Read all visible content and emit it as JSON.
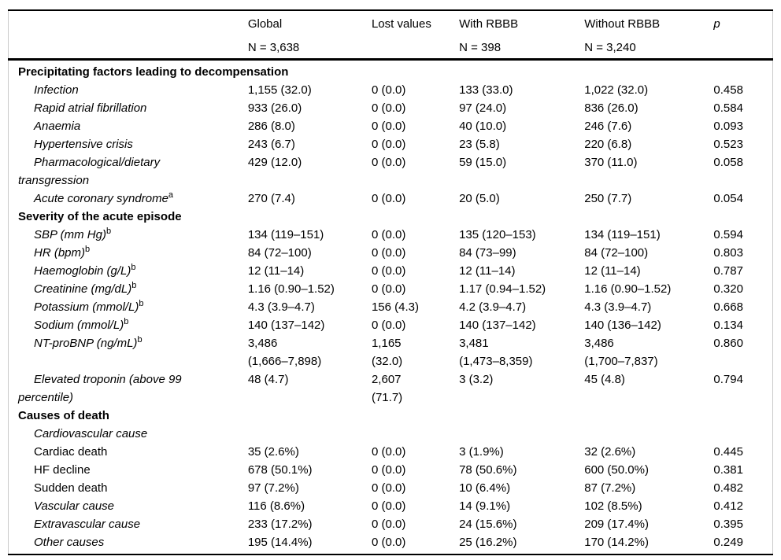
{
  "colors": {
    "text": "#000000",
    "rule": "#000000",
    "side_border": "#c9c9c9"
  },
  "table": {
    "columns": [
      {
        "label": "",
        "sub": ""
      },
      {
        "label": "Global",
        "sub": "N = 3,638"
      },
      {
        "label": "Lost values",
        "sub": ""
      },
      {
        "label": "With RBBB",
        "sub": "N = 398"
      },
      {
        "label": "Without RBBB",
        "sub": "N = 3,240"
      },
      {
        "label": "p",
        "sub": ""
      }
    ],
    "sections": [
      {
        "header": "Precipitating factors leading to decompensation",
        "rows": [
          {
            "label": "Infection",
            "sup": "",
            "values": [
              "1,155 (32.0)",
              "0 (0.0)",
              "133 (33.0)",
              "1,022 (32.0)",
              "0.458"
            ]
          },
          {
            "label": "Rapid atrial fibrillation",
            "sup": "",
            "values": [
              "933 (26.0)",
              "0 (0.0)",
              "97 (24.0)",
              "836 (26.0)",
              "0.584"
            ]
          },
          {
            "label": "Anaemia",
            "sup": "",
            "values": [
              "286 (8.0)",
              "0 (0.0)",
              "40 (10.0)",
              "246 (7.6)",
              "0.093"
            ]
          },
          {
            "label": "Hypertensive crisis",
            "sup": "",
            "values": [
              "243 (6.7)",
              "0 (0.0)",
              "23 (5.8)",
              "220 (6.8)",
              "0.523"
            ]
          },
          {
            "label": "Pharmacological/dietary\ntransgression",
            "sup": "",
            "values": [
              "429 (12.0)",
              "0 (0.0)",
              "59 (15.0)",
              "370 (11.0)",
              "0.058"
            ]
          },
          {
            "label": "Acute coronary syndrome",
            "sup": "a",
            "values": [
              "270 (7.4)",
              "0 (0.0)",
              "20 (5.0)",
              "250 (7.7)",
              "0.054"
            ]
          }
        ]
      },
      {
        "header": "Severity of the acute episode",
        "rows": [
          {
            "label": "SBP (mm Hg)",
            "sup": "b",
            "values": [
              "134 (119–151)",
              "0 (0.0)",
              "135 (120–153)",
              "134 (119–151)",
              "0.594"
            ]
          },
          {
            "label": "HR (bpm)",
            "sup": "b",
            "values": [
              "84 (72–100)",
              "0 (0.0)",
              "84 (73–99)",
              "84 (72–100)",
              "0.803"
            ]
          },
          {
            "label": "Haemoglobin (g/L)",
            "sup": "b",
            "values": [
              "12 (11–14)",
              "0 (0.0)",
              "12 (11–14)",
              "12 (11–14)",
              "0.787"
            ]
          },
          {
            "label": "Creatinine (mg/dL)",
            "sup": "b",
            "values": [
              "1.16 (0.90–1.52)",
              "0 (0.0)",
              "1.17 (0.94–1.52)",
              "1.16 (0.90–1.52)",
              "0.320"
            ]
          },
          {
            "label": "Potassium (mmol/L)",
            "sup": "b",
            "values": [
              "4.3 (3.9–4.7)",
              "156 (4.3)",
              "4.2 (3.9–4.7)",
              "4.3 (3.9–4.7)",
              "0.668"
            ]
          },
          {
            "label": "Sodium (mmol/L)",
            "sup": "b",
            "values": [
              "140 (137–142)",
              "0 (0.0)",
              "140 (137–142)",
              "140 (136–142)",
              "0.134"
            ]
          },
          {
            "label": "NT-proBNP (ng/mL)",
            "sup": "b",
            "values": [
              "3,486\n(1,666–7,898)",
              "1,165\n(32.0)",
              "3,481\n(1,473–8,359)",
              "3,486\n(1,700–7,837)",
              "0.860"
            ]
          },
          {
            "label": "Elevated troponin (above 99\npercentile)",
            "sup": "",
            "values": [
              "48 (4.7)",
              "2,607\n(71.7)",
              "3 (3.2)",
              "45 (4.8)",
              "0.794"
            ]
          }
        ]
      },
      {
        "header": "Causes of death",
        "rows": [
          {
            "label": "Cardiovascular cause",
            "sup": "",
            "values": [
              "",
              "",
              "",
              "",
              ""
            ]
          },
          {
            "label": "Cardiac death",
            "sup": "",
            "values": [
              "35 (2.6%)",
              "0 (0.0)",
              "3 (1.9%)",
              "32 (2.6%)",
              "0.445"
            ]
          },
          {
            "label": "HF decline",
            "sup": "",
            "values": [
              "678 (50.1%)",
              "0 (0.0)",
              "78 (50.6%)",
              "600 (50.0%)",
              "0.381"
            ]
          },
          {
            "label": "Sudden death",
            "sup": "",
            "values": [
              "97 (7.2%)",
              "0 (0.0)",
              "10 (6.4%)",
              "87 (7.2%)",
              "0.482"
            ]
          },
          {
            "label": "Vascular cause",
            "sup": "",
            "values": [
              "116 (8.6%)",
              "0 (0.0)",
              "14 (9.1%)",
              "102 (8.5%)",
              "0.412"
            ]
          },
          {
            "label": "Extravascular cause",
            "sup": "",
            "values": [
              "233 (17.2%)",
              "0 (0.0)",
              "24 (15.6%)",
              "209 (17.4%)",
              "0.395"
            ]
          },
          {
            "label": "Other causes",
            "sup": "",
            "values": [
              "195 (14.4%)",
              "0 (0.0)",
              "25 (16.2%)",
              "170 (14.2%)",
              "0.249"
            ]
          }
        ]
      }
    ]
  }
}
